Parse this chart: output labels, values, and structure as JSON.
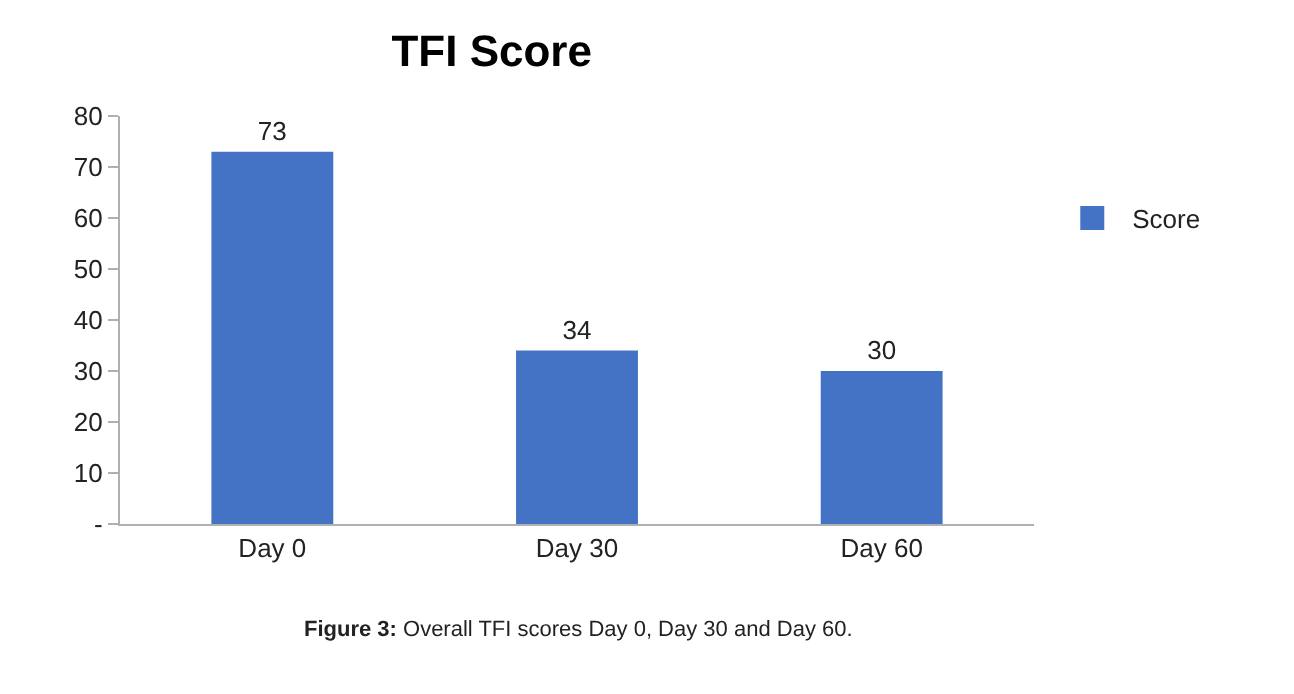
{
  "chart_data": {
    "type": "bar",
    "title": "TFI Score",
    "categories": [
      "Day 0",
      "Day 30",
      "Day 60"
    ],
    "series": [
      {
        "name": "Score",
        "color": "#4472c4",
        "values": [
          73,
          34,
          30
        ]
      }
    ],
    "ylim": [
      0,
      80
    ],
    "yticks": [
      {
        "value": 0,
        "label": "-"
      },
      10,
      20,
      30,
      40,
      50,
      60,
      70,
      80
    ],
    "data_labels": true,
    "legend": "right",
    "annotations": [
      "Figure 3: Overall TFI scores Day 0, Day 30 and Day 60."
    ]
  }
}
